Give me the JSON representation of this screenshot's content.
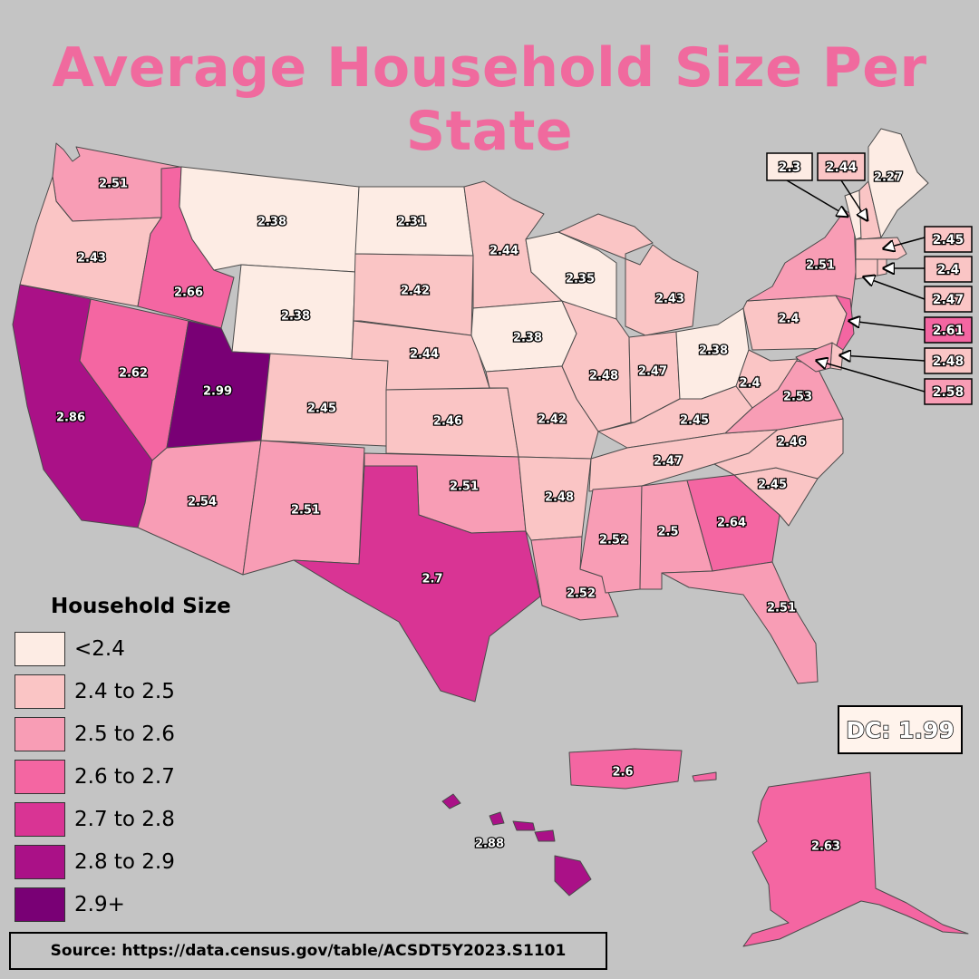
{
  "title": "Average Household Size Per State",
  "legend": {
    "title": "Household Size",
    "bins": [
      {
        "label": "<2.4",
        "color": "#fdece4"
      },
      {
        "label": "2.4 to 2.5",
        "color": "#fac5c5"
      },
      {
        "label": "2.5 to 2.6",
        "color": "#f89db5"
      },
      {
        "label": "2.6 to 2.7",
        "color": "#f466a2"
      },
      {
        "label": "2.7 to 2.8",
        "color": "#d93494"
      },
      {
        "label": "2.8 to 2.9",
        "color": "#aa1187"
      },
      {
        "label": "2.9+",
        "color": "#790075"
      }
    ]
  },
  "states": [
    {
      "code": "WA",
      "label": "2.51",
      "value": 2.51
    },
    {
      "code": "OR",
      "label": "2.43",
      "value": 2.43
    },
    {
      "code": "CA",
      "label": "2.86",
      "value": 2.86
    },
    {
      "code": "ID",
      "label": "2.66",
      "value": 2.66
    },
    {
      "code": "NV",
      "label": "2.62",
      "value": 2.62
    },
    {
      "code": "MT",
      "label": "2.38",
      "value": 2.38
    },
    {
      "code": "WY",
      "label": "2.38",
      "value": 2.38
    },
    {
      "code": "UT",
      "label": "2.99",
      "value": 2.99
    },
    {
      "code": "AZ",
      "label": "2.54",
      "value": 2.54
    },
    {
      "code": "CO",
      "label": "2.45",
      "value": 2.45
    },
    {
      "code": "NM",
      "label": "2.51",
      "value": 2.51
    },
    {
      "code": "ND",
      "label": "2.31",
      "value": 2.31
    },
    {
      "code": "SD",
      "label": "2.42",
      "value": 2.42
    },
    {
      "code": "NE",
      "label": "2.44",
      "value": 2.44
    },
    {
      "code": "KS",
      "label": "2.46",
      "value": 2.46
    },
    {
      "code": "OK",
      "label": "2.51",
      "value": 2.51
    },
    {
      "code": "TX",
      "label": "2.7",
      "value": 2.7
    },
    {
      "code": "MN",
      "label": "2.44",
      "value": 2.44
    },
    {
      "code": "IA",
      "label": "2.38",
      "value": 2.38
    },
    {
      "code": "MO",
      "label": "2.42",
      "value": 2.42
    },
    {
      "code": "AR",
      "label": "2.48",
      "value": 2.48
    },
    {
      "code": "LA",
      "label": "2.52",
      "value": 2.52
    },
    {
      "code": "WI",
      "label": "2.35",
      "value": 2.35
    },
    {
      "code": "IL",
      "label": "2.48",
      "value": 2.48
    },
    {
      "code": "MI",
      "label": "2.43",
      "value": 2.43
    },
    {
      "code": "IN",
      "label": "2.47",
      "value": 2.47
    },
    {
      "code": "OH",
      "label": "2.38",
      "value": 2.38
    },
    {
      "code": "KY",
      "label": "2.45",
      "value": 2.45
    },
    {
      "code": "TN",
      "label": "2.47",
      "value": 2.47
    },
    {
      "code": "MS",
      "label": "2.52",
      "value": 2.52
    },
    {
      "code": "AL",
      "label": "2.5",
      "value": 2.5
    },
    {
      "code": "GA",
      "label": "2.64",
      "value": 2.64
    },
    {
      "code": "FL",
      "label": "2.51",
      "value": 2.51
    },
    {
      "code": "SC",
      "label": "2.45",
      "value": 2.45
    },
    {
      "code": "NC",
      "label": "2.46",
      "value": 2.46
    },
    {
      "code": "VA",
      "label": "2.53",
      "value": 2.53
    },
    {
      "code": "WV",
      "label": "2.4",
      "value": 2.4
    },
    {
      "code": "PA",
      "label": "2.4",
      "value": 2.4
    },
    {
      "code": "NY",
      "label": "2.51",
      "value": 2.51
    },
    {
      "code": "ME",
      "label": "2.27",
      "value": 2.27
    },
    {
      "code": "AK",
      "label": "2.63",
      "value": 2.63
    },
    {
      "code": "HI",
      "label": "2.88",
      "value": 2.88
    },
    {
      "code": "PR",
      "label": "2.6",
      "value": 2.6
    }
  ],
  "callouts": [
    {
      "code": "VT",
      "label": "2.3",
      "value": 2.3
    },
    {
      "code": "NH",
      "label": "2.44",
      "value": 2.44
    },
    {
      "code": "MA",
      "label": "2.45",
      "value": 2.45
    },
    {
      "code": "RI",
      "label": "2.4",
      "value": 2.4
    },
    {
      "code": "CT",
      "label": "2.47",
      "value": 2.47
    },
    {
      "code": "NJ",
      "label": "2.61",
      "value": 2.61
    },
    {
      "code": "DE",
      "label": "2.48",
      "value": 2.48
    },
    {
      "code": "MD",
      "label": "2.58",
      "value": 2.58
    }
  ],
  "dc": {
    "label": "DC: 1.99",
    "value": 1.99
  },
  "source": "Source: https://data.census.gov/table/ACSDT5Y2023.S1101"
}
